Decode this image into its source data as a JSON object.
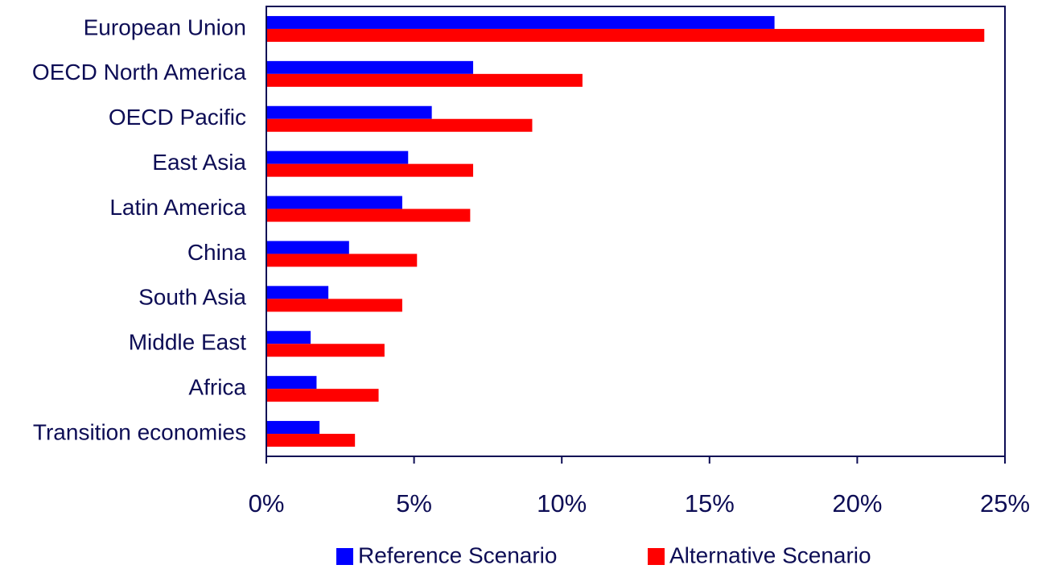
{
  "chart_data": {
    "type": "barh",
    "categories": [
      "European Union",
      "OECD North America",
      "OECD Pacific",
      "East Asia",
      "Latin America",
      "China",
      "South Asia",
      "Middle East",
      "Africa",
      "Transition economies"
    ],
    "series": [
      {
        "name": "Reference Scenario",
        "color": "#0000ff",
        "values": [
          17.2,
          7.0,
          5.6,
          4.8,
          4.6,
          2.8,
          2.1,
          1.5,
          1.7,
          1.8
        ]
      },
      {
        "name": "Alternative Scenario",
        "color": "#ff0000",
        "values": [
          24.3,
          10.7,
          9.0,
          7.0,
          6.9,
          5.1,
          4.6,
          4.0,
          3.8,
          3.0
        ]
      }
    ],
    "xlim": [
      0,
      25
    ],
    "xticks": [
      {
        "value": 0,
        "label": "0%"
      },
      {
        "value": 5,
        "label": "5%"
      },
      {
        "value": 10,
        "label": "10%"
      },
      {
        "value": 15,
        "label": "15%"
      },
      {
        "value": 20,
        "label": "20%"
      },
      {
        "value": 25,
        "label": "25%"
      }
    ],
    "legend": "bottom"
  }
}
